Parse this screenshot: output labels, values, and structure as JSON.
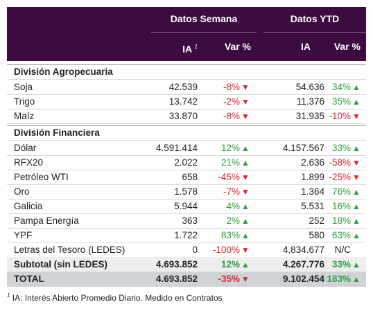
{
  "header": {
    "group_week": "Datos Semana",
    "group_ytd": "Datos YTD",
    "ia_week": "IA",
    "ia_note": "1",
    "var_week": "Var %",
    "ia_ytd": "IA",
    "var_ytd": "Var %"
  },
  "sections": [
    {
      "title": "División Agropecuaria",
      "rows": [
        [
          "Soja",
          "42.539",
          "-8%",
          "54.636",
          "34%"
        ],
        [
          "Trigo",
          "13.742",
          "-2%",
          "11.376",
          "35%"
        ],
        [
          "Maíz",
          "33.870",
          "-8%",
          "31.935",
          "-10%"
        ]
      ]
    },
    {
      "title": "División Financiera",
      "rows": [
        [
          "Dólar",
          "4.591.414",
          "12%",
          "4.157.567",
          "33%"
        ],
        [
          "RFX20",
          "2.022",
          "21%",
          "2.636",
          "-58%"
        ],
        [
          "Petróleo WTI",
          "658",
          "-45%",
          "1.899",
          "-25%"
        ],
        [
          "Oro",
          "1.578",
          "-7%",
          "1.364",
          "76%"
        ],
        [
          "Galicia",
          "5.944",
          "4%",
          "5.531",
          "16%"
        ],
        [
          "Pampa Energía",
          "363",
          "2%",
          "252",
          "18%"
        ],
        [
          "YPF",
          "1.722",
          "83%",
          "580",
          "63%"
        ],
        [
          "Letras del Tesoro (LEDES)",
          "0",
          "-100%",
          "4.834.677",
          "N/C"
        ]
      ]
    }
  ],
  "subtotal": [
    "Subtotal (sin LEDES)",
    "4.693.852",
    "12%",
    "4.267.776",
    "33%"
  ],
  "total": [
    "TOTAL",
    "4.693.852",
    "-35%",
    "9.102.454",
    "183%"
  ],
  "footnote": {
    "mark": "1",
    "text": "IA: Interés Abierto Promedio Diario. Medido en Contratos"
  }
}
